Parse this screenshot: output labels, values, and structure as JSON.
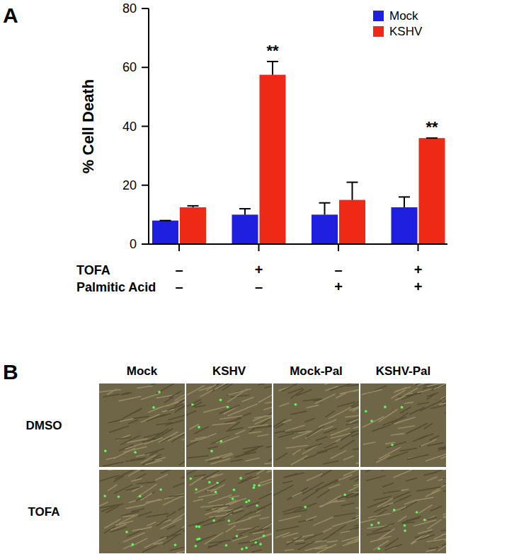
{
  "chart_data": {
    "type": "bar",
    "title": "A",
    "y_label": "% Cell Death",
    "categories": [
      null,
      null,
      null,
      null
    ],
    "series": [
      {
        "name": "Mock",
        "color": "#1f1fe0",
        "values": [
          8,
          10,
          10,
          12.5
        ],
        "errors": [
          0,
          2,
          4,
          3.5
        ]
      },
      {
        "name": "KSHV",
        "color": "#ee2a16",
        "values": [
          12.5,
          57.5,
          15,
          36
        ],
        "errors": [
          0.5,
          4.5,
          6,
          0
        ],
        "significance": [
          null,
          "**",
          null,
          "**"
        ]
      }
    ],
    "conditions": [
      {
        "label": "TOFA",
        "values": [
          "–",
          "+",
          "–",
          "+"
        ]
      },
      {
        "label": "Palmitic Acid",
        "values": [
          "–",
          "–",
          "+",
          "+"
        ]
      }
    ],
    "ylim": [
      0,
      80
    ],
    "yticks": [
      0,
      20,
      40,
      60,
      80
    ],
    "grid": false,
    "legend": "top-right"
  },
  "panel_b": {
    "label": "B",
    "columns": [
      "Mock",
      "KSHV",
      "Mock-Pal",
      "KSHV-Pal"
    ],
    "rows": [
      "DMSO",
      "TOFA"
    ]
  }
}
